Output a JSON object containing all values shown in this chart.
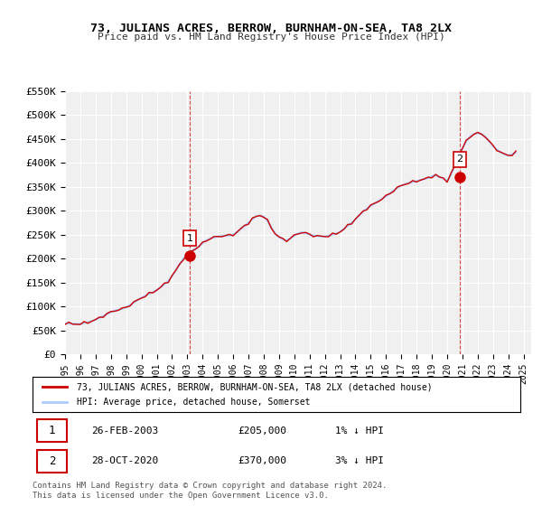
{
  "title": "73, JULIANS ACRES, BERROW, BURNHAM-ON-SEA, TA8 2LX",
  "subtitle": "Price paid vs. HM Land Registry's House Price Index (HPI)",
  "ylabel": "",
  "xlabel": "",
  "ylim": [
    0,
    550000
  ],
  "yticks": [
    0,
    50000,
    100000,
    150000,
    200000,
    250000,
    300000,
    350000,
    400000,
    450000,
    500000,
    550000
  ],
  "ytick_labels": [
    "£0",
    "£50K",
    "£100K",
    "£150K",
    "£200K",
    "£250K",
    "£300K",
    "£350K",
    "£400K",
    "£450K",
    "£500K",
    "£550K"
  ],
  "background_color": "#ffffff",
  "plot_bg_color": "#f0f0f0",
  "grid_color": "#ffffff",
  "hpi_color": "#aaccff",
  "price_color": "#cc0000",
  "marker1_date": "26-FEB-2003",
  "marker1_price": 205000,
  "marker1_x": 2003.15,
  "marker1_label": "1% ↓ HPI",
  "marker2_date": "28-OCT-2020",
  "marker2_price": 370000,
  "marker2_x": 2020.82,
  "marker2_label": "3% ↓ HPI",
  "legend_property": "73, JULIANS ACRES, BERROW, BURNHAM-ON-SEA, TA8 2LX (detached house)",
  "legend_hpi": "HPI: Average price, detached house, Somerset",
  "footer1": "Contains HM Land Registry data © Crown copyright and database right 2024.",
  "footer2": "This data is licensed under the Open Government Licence v3.0.",
  "sale1_text": "1    26-FEB-2003    £205,000    1% ↓ HPI",
  "sale2_text": "2    28-OCT-2020    £370,000    3% ↓ HPI",
  "hpi_data": {
    "years": [
      1995.0,
      1995.25,
      1995.5,
      1995.75,
      1996.0,
      1996.25,
      1996.5,
      1996.75,
      1997.0,
      1997.25,
      1997.5,
      1997.75,
      1998.0,
      1998.25,
      1998.5,
      1998.75,
      1999.0,
      1999.25,
      1999.5,
      1999.75,
      2000.0,
      2000.25,
      2000.5,
      2000.75,
      2001.0,
      2001.25,
      2001.5,
      2001.75,
      2002.0,
      2002.25,
      2002.5,
      2002.75,
      2003.0,
      2003.25,
      2003.5,
      2003.75,
      2004.0,
      2004.25,
      2004.5,
      2004.75,
      2005.0,
      2005.25,
      2005.5,
      2005.75,
      2006.0,
      2006.25,
      2006.5,
      2006.75,
      2007.0,
      2007.25,
      2007.5,
      2007.75,
      2008.0,
      2008.25,
      2008.5,
      2008.75,
      2009.0,
      2009.25,
      2009.5,
      2009.75,
      2010.0,
      2010.25,
      2010.5,
      2010.75,
      2011.0,
      2011.25,
      2011.5,
      2011.75,
      2012.0,
      2012.25,
      2012.5,
      2012.75,
      2013.0,
      2013.25,
      2013.5,
      2013.75,
      2014.0,
      2014.25,
      2014.5,
      2014.75,
      2015.0,
      2015.25,
      2015.5,
      2015.75,
      2016.0,
      2016.25,
      2016.5,
      2016.75,
      2017.0,
      2017.25,
      2017.5,
      2017.75,
      2018.0,
      2018.25,
      2018.5,
      2018.75,
      2019.0,
      2019.25,
      2019.5,
      2019.75,
      2020.0,
      2020.25,
      2020.5,
      2020.75,
      2021.0,
      2021.25,
      2021.5,
      2021.75,
      2022.0,
      2022.25,
      2022.5,
      2022.75,
      2023.0,
      2023.25,
      2023.5,
      2023.75,
      2024.0,
      2024.25,
      2024.5
    ],
    "values": [
      65000,
      64000,
      63500,
      63000,
      63500,
      65000,
      67000,
      69000,
      72000,
      76000,
      80000,
      84000,
      88000,
      91000,
      93000,
      95000,
      98000,
      103000,
      108000,
      113000,
      118000,
      122000,
      126000,
      130000,
      134000,
      140000,
      146000,
      153000,
      163000,
      175000,
      188000,
      200000,
      207000,
      215000,
      220000,
      225000,
      232000,
      238000,
      242000,
      244000,
      246000,
      247000,
      248000,
      248000,
      250000,
      255000,
      262000,
      268000,
      275000,
      282000,
      288000,
      290000,
      288000,
      278000,
      265000,
      252000,
      245000,
      240000,
      238000,
      242000,
      248000,
      252000,
      255000,
      253000,
      250000,
      248000,
      247000,
      246000,
      246000,
      248000,
      250000,
      252000,
      256000,
      262000,
      268000,
      275000,
      282000,
      290000,
      298000,
      305000,
      310000,
      315000,
      320000,
      325000,
      330000,
      336000,
      342000,
      348000,
      352000,
      356000,
      358000,
      360000,
      362000,
      364000,
      366000,
      368000,
      372000,
      374000,
      370000,
      368000,
      362000,
      375000,
      395000,
      415000,
      430000,
      445000,
      455000,
      460000,
      462000,
      460000,
      455000,
      445000,
      435000,
      428000,
      422000,
      418000,
      415000,
      418000,
      422000
    ]
  },
  "xlim": [
    1995,
    2025.5
  ],
  "xticks": [
    1995,
    1996,
    1997,
    1998,
    1999,
    2000,
    2001,
    2002,
    2003,
    2004,
    2005,
    2006,
    2007,
    2008,
    2009,
    2010,
    2011,
    2012,
    2013,
    2014,
    2015,
    2016,
    2017,
    2018,
    2019,
    2020,
    2021,
    2022,
    2023,
    2024,
    2025
  ]
}
